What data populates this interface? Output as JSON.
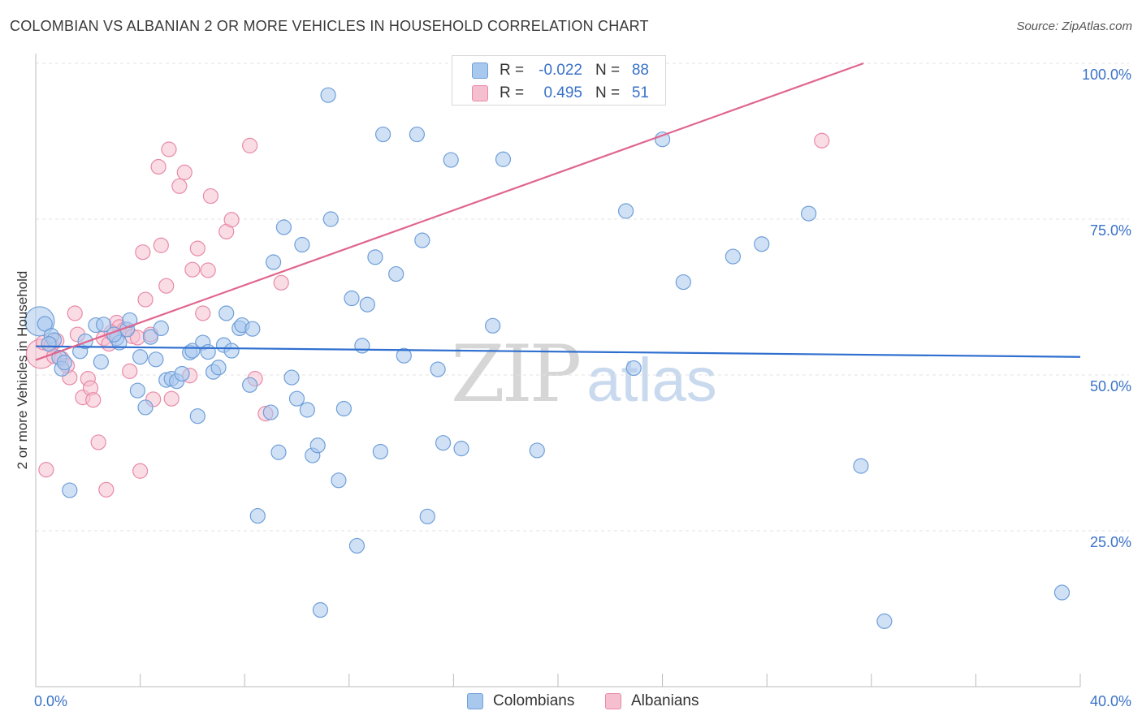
{
  "title": "COLOMBIAN VS ALBANIAN 2 OR MORE VEHICLES IN HOUSEHOLD CORRELATION CHART",
  "source": "Source: ZipAtlas.com",
  "watermark": {
    "zip": "ZIP",
    "atlas": "atlas"
  },
  "legend_top": [
    {
      "r_label": "R =",
      "r_value": "-0.022",
      "n_label": "N =",
      "n_value": "88"
    },
    {
      "r_label": "R =",
      "r_value": "0.495",
      "n_label": "N =",
      "n_value": "51"
    }
  ],
  "legend_bottom": [
    "Colombians",
    "Albanians"
  ],
  "colors": {
    "colombians_fill": "#a9c8ee",
    "colombians_stroke": "#6f9fd8",
    "colombians_line": "#2f6fcf",
    "albanians_fill": "#f6bfd0",
    "albanians_stroke": "#e88aa8",
    "albanians_line": "#e0668f",
    "tick_label": "#3a72c9",
    "grid": "#e3e3e3"
  },
  "chart_data": {
    "type": "scatter",
    "title": "COLOMBIAN VS ALBANIAN 2 OR MORE VEHICLES IN HOUSEHOLD CORRELATION CHART",
    "xlabel": "",
    "ylabel": "2 or more Vehicles in Household",
    "xlim": [
      0,
      40
    ],
    "ylim": [
      0,
      100
    ],
    "x_tick_labels": [
      "0.0%",
      "40.0%"
    ],
    "y_tick_labels": [
      {
        "value": 25,
        "label": "25.0%"
      },
      {
        "value": 50,
        "label": "50.0%"
      },
      {
        "value": 75,
        "label": "75.0%"
      },
      {
        "value": 100,
        "label": "100.0%"
      }
    ],
    "series": [
      {
        "name": "Colombians",
        "trend": {
          "x": [
            0,
            40
          ],
          "y": [
            54.6,
            52.9
          ]
        },
        "points": [
          {
            "x": 0.15,
            "y": 58.6,
            "big": true
          },
          {
            "x": 0.35,
            "y": 58.2
          },
          {
            "x": 0.6,
            "y": 56.3
          },
          {
            "x": 0.7,
            "y": 55.6
          },
          {
            "x": 0.9,
            "y": 52.8
          },
          {
            "x": 1.0,
            "y": 51.0
          },
          {
            "x": 1.3,
            "y": 31.5
          },
          {
            "x": 1.7,
            "y": 53.8
          },
          {
            "x": 1.9,
            "y": 55.4
          },
          {
            "x": 2.3,
            "y": 58.0
          },
          {
            "x": 2.5,
            "y": 52.1
          },
          {
            "x": 2.6,
            "y": 58.1
          },
          {
            "x": 3.1,
            "y": 55.9
          },
          {
            "x": 3.2,
            "y": 55.2
          },
          {
            "x": 3.5,
            "y": 57.3
          },
          {
            "x": 3.6,
            "y": 58.8
          },
          {
            "x": 3.9,
            "y": 47.5
          },
          {
            "x": 4.0,
            "y": 52.9
          },
          {
            "x": 4.2,
            "y": 44.8
          },
          {
            "x": 4.4,
            "y": 56.1
          },
          {
            "x": 4.6,
            "y": 52.5
          },
          {
            "x": 4.8,
            "y": 57.5
          },
          {
            "x": 5.0,
            "y": 49.2
          },
          {
            "x": 5.2,
            "y": 49.4
          },
          {
            "x": 5.4,
            "y": 49.0
          },
          {
            "x": 5.6,
            "y": 50.2
          },
          {
            "x": 5.9,
            "y": 53.6
          },
          {
            "x": 6.0,
            "y": 53.9
          },
          {
            "x": 6.2,
            "y": 43.4
          },
          {
            "x": 6.4,
            "y": 55.2
          },
          {
            "x": 6.6,
            "y": 53.7
          },
          {
            "x": 6.8,
            "y": 50.5
          },
          {
            "x": 7.0,
            "y": 51.2
          },
          {
            "x": 7.2,
            "y": 54.8
          },
          {
            "x": 7.3,
            "y": 59.9
          },
          {
            "x": 7.5,
            "y": 53.9
          },
          {
            "x": 7.8,
            "y": 57.5
          },
          {
            "x": 7.9,
            "y": 58.0
          },
          {
            "x": 8.2,
            "y": 48.4
          },
          {
            "x": 8.3,
            "y": 57.4
          },
          {
            "x": 8.5,
            "y": 27.4
          },
          {
            "x": 9.0,
            "y": 44.0
          },
          {
            "x": 9.1,
            "y": 68.1
          },
          {
            "x": 9.3,
            "y": 37.6
          },
          {
            "x": 9.5,
            "y": 73.7
          },
          {
            "x": 9.8,
            "y": 49.6
          },
          {
            "x": 10.0,
            "y": 46.2
          },
          {
            "x": 10.2,
            "y": 70.9
          },
          {
            "x": 10.4,
            "y": 44.4
          },
          {
            "x": 10.6,
            "y": 37.1
          },
          {
            "x": 10.8,
            "y": 38.7
          },
          {
            "x": 10.9,
            "y": 12.3
          },
          {
            "x": 11.2,
            "y": 94.9
          },
          {
            "x": 11.3,
            "y": 75.0
          },
          {
            "x": 11.6,
            "y": 33.1
          },
          {
            "x": 11.8,
            "y": 44.6
          },
          {
            "x": 12.1,
            "y": 62.3
          },
          {
            "x": 12.3,
            "y": 22.6
          },
          {
            "x": 12.5,
            "y": 54.7
          },
          {
            "x": 12.7,
            "y": 61.3
          },
          {
            "x": 13.0,
            "y": 68.9
          },
          {
            "x": 13.2,
            "y": 37.7
          },
          {
            "x": 13.3,
            "y": 88.6
          },
          {
            "x": 13.8,
            "y": 66.2
          },
          {
            "x": 14.1,
            "y": 53.1
          },
          {
            "x": 14.6,
            "y": 88.6
          },
          {
            "x": 14.8,
            "y": 71.6
          },
          {
            "x": 15.0,
            "y": 27.3
          },
          {
            "x": 15.4,
            "y": 50.9
          },
          {
            "x": 15.6,
            "y": 39.1
          },
          {
            "x": 15.9,
            "y": 84.5
          },
          {
            "x": 16.3,
            "y": 38.2
          },
          {
            "x": 17.5,
            "y": 57.9
          },
          {
            "x": 17.9,
            "y": 84.6
          },
          {
            "x": 19.2,
            "y": 37.9
          },
          {
            "x": 22.6,
            "y": 76.3
          },
          {
            "x": 22.9,
            "y": 51.1
          },
          {
            "x": 24.0,
            "y": 87.8
          },
          {
            "x": 24.8,
            "y": 64.9
          },
          {
            "x": 26.7,
            "y": 69.0
          },
          {
            "x": 27.8,
            "y": 71.0
          },
          {
            "x": 29.6,
            "y": 75.9
          },
          {
            "x": 31.6,
            "y": 35.4
          },
          {
            "x": 32.5,
            "y": 10.5
          },
          {
            "x": 39.3,
            "y": 15.1
          },
          {
            "x": 0.5,
            "y": 55.0
          },
          {
            "x": 1.1,
            "y": 52.0
          },
          {
            "x": 3.0,
            "y": 56.5
          }
        ]
      },
      {
        "name": "Albanians",
        "trend": {
          "x": [
            0,
            31.7
          ],
          "y": [
            52.4,
            100
          ]
        },
        "points": [
          {
            "x": 0.2,
            "y": 53.4,
            "big": true
          },
          {
            "x": 0.3,
            "y": 55.2
          },
          {
            "x": 0.4,
            "y": 34.8
          },
          {
            "x": 0.6,
            "y": 54.8
          },
          {
            "x": 0.8,
            "y": 55.5
          },
          {
            "x": 1.0,
            "y": 52.6
          },
          {
            "x": 1.3,
            "y": 49.6
          },
          {
            "x": 1.5,
            "y": 59.9
          },
          {
            "x": 1.6,
            "y": 56.5
          },
          {
            "x": 1.8,
            "y": 46.4
          },
          {
            "x": 2.0,
            "y": 49.4
          },
          {
            "x": 2.1,
            "y": 47.9
          },
          {
            "x": 2.2,
            "y": 46.0
          },
          {
            "x": 2.4,
            "y": 39.2
          },
          {
            "x": 2.6,
            "y": 55.9
          },
          {
            "x": 2.7,
            "y": 31.6
          },
          {
            "x": 2.8,
            "y": 55.0
          },
          {
            "x": 3.1,
            "y": 58.4
          },
          {
            "x": 3.2,
            "y": 57.7
          },
          {
            "x": 3.4,
            "y": 57.3
          },
          {
            "x": 3.6,
            "y": 50.6
          },
          {
            "x": 3.7,
            "y": 56.2
          },
          {
            "x": 4.0,
            "y": 34.6
          },
          {
            "x": 4.1,
            "y": 69.7
          },
          {
            "x": 4.2,
            "y": 62.1
          },
          {
            "x": 4.4,
            "y": 56.5
          },
          {
            "x": 4.5,
            "y": 46.1
          },
          {
            "x": 4.7,
            "y": 83.4
          },
          {
            "x": 4.8,
            "y": 70.8
          },
          {
            "x": 5.0,
            "y": 64.3
          },
          {
            "x": 5.1,
            "y": 86.2
          },
          {
            "x": 5.2,
            "y": 46.2
          },
          {
            "x": 5.5,
            "y": 80.3
          },
          {
            "x": 5.7,
            "y": 82.5
          },
          {
            "x": 5.9,
            "y": 49.9
          },
          {
            "x": 6.0,
            "y": 66.9
          },
          {
            "x": 6.2,
            "y": 70.3
          },
          {
            "x": 6.4,
            "y": 59.9
          },
          {
            "x": 6.6,
            "y": 66.8
          },
          {
            "x": 6.7,
            "y": 78.7
          },
          {
            "x": 7.3,
            "y": 73.0
          },
          {
            "x": 7.5,
            "y": 74.9
          },
          {
            "x": 8.2,
            "y": 86.8
          },
          {
            "x": 8.4,
            "y": 49.4
          },
          {
            "x": 8.8,
            "y": 43.8
          },
          {
            "x": 9.4,
            "y": 64.8
          },
          {
            "x": 30.1,
            "y": 87.6
          },
          {
            "x": 0.7,
            "y": 53.0
          },
          {
            "x": 1.2,
            "y": 51.5
          },
          {
            "x": 3.9,
            "y": 56.0
          },
          {
            "x": 2.9,
            "y": 56.8
          }
        ]
      }
    ]
  }
}
